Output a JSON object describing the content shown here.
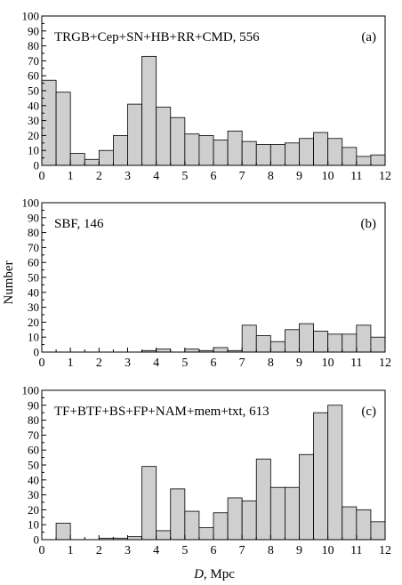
{
  "figure": {
    "ylabel": "Number",
    "xlabel_italic": "D",
    "xlabel_rest": ", Mpc"
  },
  "chart_data": [
    {
      "type": "bar",
      "panel_label": "(a)",
      "title": "TRGB+Cep+SN+HB+RR+CMD, 556",
      "xlim": [
        0,
        12
      ],
      "ylim": [
        0,
        100
      ],
      "xticks": [
        "0",
        "1",
        "2",
        "3",
        "4",
        "5",
        "6",
        "7",
        "8",
        "9",
        "10",
        "11",
        "12"
      ],
      "yticks": [
        "0",
        "10",
        "20",
        "30",
        "40",
        "50",
        "60",
        "70",
        "80",
        "90",
        "100"
      ],
      "bin_width": 0.5,
      "bin_starts": [
        0,
        0.5,
        1,
        1.5,
        2,
        2.5,
        3,
        3.5,
        4,
        4.5,
        5,
        5.5,
        6,
        6.5,
        7,
        7.5,
        8,
        8.5,
        9,
        9.5,
        10,
        10.5,
        11,
        11.5
      ],
      "values": [
        57,
        49,
        8,
        4,
        10,
        20,
        41,
        73,
        39,
        32,
        21,
        20,
        17,
        23,
        16,
        14,
        14,
        15,
        18,
        22,
        18,
        12,
        6,
        7
      ]
    },
    {
      "type": "bar",
      "panel_label": "(b)",
      "title": "SBF, 146",
      "xlim": [
        0,
        12
      ],
      "ylim": [
        0,
        100
      ],
      "xticks": [
        "0",
        "1",
        "2",
        "3",
        "4",
        "5",
        "6",
        "7",
        "8",
        "9",
        "10",
        "11",
        "12"
      ],
      "yticks": [
        "0",
        "10",
        "20",
        "30",
        "40",
        "50",
        "60",
        "70",
        "80",
        "90",
        "100"
      ],
      "bin_width": 0.5,
      "bin_starts": [
        0,
        0.5,
        1,
        1.5,
        2,
        2.5,
        3,
        3.5,
        4,
        4.5,
        5,
        5.5,
        6,
        6.5,
        7,
        7.5,
        8,
        8.5,
        9,
        9.5,
        10,
        10.5,
        11,
        11.5
      ],
      "values": [
        0,
        0,
        0,
        0,
        0,
        0,
        0,
        1,
        2,
        0,
        2,
        1,
        3,
        1,
        18,
        11,
        7,
        15,
        19,
        14,
        12,
        12,
        18,
        10
      ]
    },
    {
      "type": "bar",
      "panel_label": "(c)",
      "title": "TF+BTF+BS+FP+NAM+mem+txt, 613",
      "xlim": [
        0,
        12
      ],
      "ylim": [
        0,
        100
      ],
      "xticks": [
        "0",
        "1",
        "2",
        "3",
        "4",
        "5",
        "6",
        "7",
        "8",
        "9",
        "10",
        "11",
        "12"
      ],
      "yticks": [
        "0",
        "10",
        "20",
        "30",
        "40",
        "50",
        "60",
        "70",
        "80",
        "90",
        "100"
      ],
      "bin_width": 0.5,
      "bin_starts": [
        0,
        0.5,
        1,
        1.5,
        2,
        2.5,
        3,
        3.5,
        4,
        4.5,
        5,
        5.5,
        6,
        6.5,
        7,
        7.5,
        8,
        8.5,
        9,
        9.5,
        10,
        10.5,
        11,
        11.5
      ],
      "values": [
        0,
        11,
        0,
        0,
        1,
        1,
        2,
        49,
        6,
        34,
        19,
        8,
        18,
        28,
        26,
        54,
        35,
        35,
        57,
        85,
        90,
        22,
        20,
        12
      ]
    }
  ]
}
